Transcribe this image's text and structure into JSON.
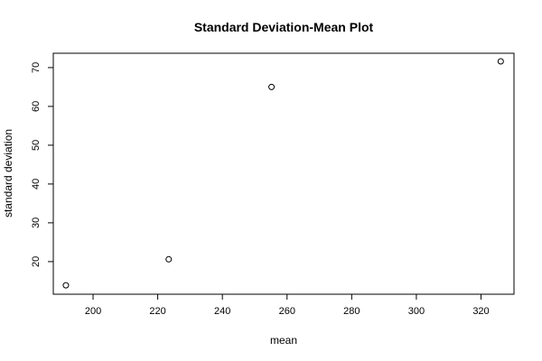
{
  "chart_data": {
    "type": "scatter",
    "title": "Standard Deviation-Mean Plot",
    "xlabel": "mean",
    "ylabel": "standard deviation",
    "xlim": [
      187.7,
      330.2
    ],
    "ylim": [
      11.6,
      73.7
    ],
    "x_ticks": [
      200,
      220,
      240,
      260,
      280,
      300,
      320
    ],
    "y_ticks": [
      20,
      30,
      40,
      50,
      60,
      70
    ],
    "x_tick_labels": [
      "200",
      "220",
      "240",
      "260",
      "280",
      "300",
      "320"
    ],
    "y_tick_labels": [
      "20",
      "30",
      "40",
      "50",
      "60",
      "70"
    ],
    "points": [
      {
        "x": 191.6,
        "y": 13.9
      },
      {
        "x": 223.4,
        "y": 20.6
      },
      {
        "x": 255.2,
        "y": 65.0
      },
      {
        "x": 326.1,
        "y": 71.6
      }
    ],
    "grid": false,
    "marker": "open-circle",
    "colors": {
      "marker": "#000000",
      "axis": "#000000",
      "background": "#ffffff"
    }
  }
}
